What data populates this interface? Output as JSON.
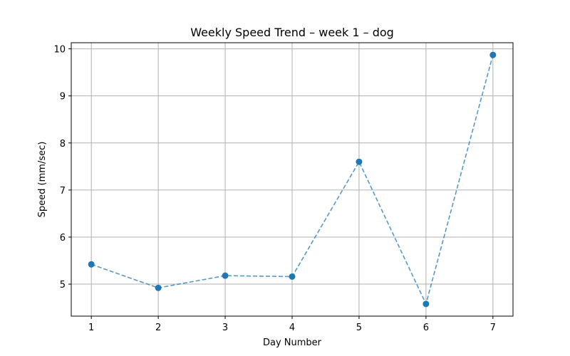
{
  "chart_data": {
    "type": "line",
    "title": "Weekly Speed Trend – week 1 – dog",
    "xlabel": "Day Number",
    "ylabel": "Speed (mm/sec)",
    "x": [
      1,
      2,
      3,
      4,
      5,
      6,
      7
    ],
    "values": [
      5.42,
      4.92,
      5.18,
      5.16,
      7.6,
      4.58,
      9.87
    ],
    "xticks": [
      1,
      2,
      3,
      4,
      5,
      6,
      7
    ],
    "yticks": [
      5,
      6,
      7,
      8,
      9,
      10
    ],
    "xlim": [
      0.7,
      7.3
    ],
    "ylim": [
      4.32,
      10.13
    ],
    "grid": true,
    "line_style": "dashed",
    "markers": "circle",
    "color": "#1f77b4",
    "grid_color": "#b0b0b0"
  }
}
